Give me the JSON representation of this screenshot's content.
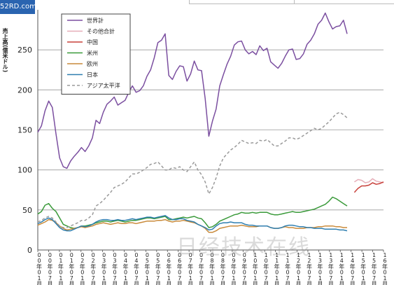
{
  "page": {
    "corner_text": "52RD.com",
    "watermark_text": "日经技术在线"
  },
  "chart_data": {
    "type": "line",
    "ylabel": "売上高(億米ドル)",
    "ylim": [
      0,
      300
    ],
    "yticks": [
      0,
      50,
      100,
      150,
      200,
      250
    ],
    "grid": true,
    "legend_position": "top-left",
    "x_count": 96,
    "x_tick_labels": [
      "00年01月",
      "00年07月",
      "01年01月",
      "01年07月",
      "02年01月",
      "02年07月",
      "03年01月",
      "03年07月",
      "04年01月",
      "04年07月",
      "05年01月",
      "05年07月",
      "06年01月",
      "06年07月",
      "07年01月",
      "07年07月",
      "08年01月",
      "08年07月",
      "09年01月",
      "09年07月",
      "10年01月",
      "10年07月",
      "11年01月",
      "11年07月",
      "12年01月",
      "12年07月",
      "13年01月",
      "13年07月",
      "14年01月",
      "14年07月",
      "15年01月",
      "15年07月",
      "16年01月"
    ],
    "series": [
      {
        "name": "世界計",
        "color": "#7b4fa0",
        "dash": false,
        "start": 0,
        "values": [
          147,
          155,
          174,
          186,
          178,
          145,
          115,
          104,
          102,
          111,
          117,
          122,
          128,
          123,
          130,
          140,
          162,
          158,
          172,
          182,
          186,
          191,
          181,
          184,
          187,
          197,
          205,
          197,
          199,
          205,
          217,
          225,
          240,
          259,
          262,
          270,
          218,
          213,
          223,
          230,
          229,
          211,
          220,
          236,
          225,
          224,
          189,
          142,
          161,
          176,
          205,
          219,
          232,
          242,
          256,
          260,
          261,
          250,
          245,
          248,
          244,
          255,
          249,
          252,
          235,
          231,
          227,
          233,
          242,
          250,
          251,
          238,
          239,
          245,
          257,
          262,
          270,
          282,
          287,
          296,
          285,
          276,
          279,
          280,
          287,
          270
        ]
      },
      {
        "name": "その他合計",
        "color": "#e6aeb8",
        "dash": false,
        "start": 87,
        "values": [
          85,
          88,
          87,
          84,
          85,
          89,
          86,
          85,
          84
        ]
      },
      {
        "name": "中国",
        "color": "#c8403a",
        "dash": false,
        "start": 87,
        "values": [
          72,
          77,
          80,
          80,
          81,
          84,
          82,
          83,
          85
        ]
      },
      {
        "name": "米州",
        "color": "#3a9a3a",
        "dash": false,
        "start": 0,
        "values": [
          45,
          48,
          56,
          58,
          52,
          48,
          40,
          32,
          30,
          28,
          27,
          28,
          30,
          30,
          31,
          32,
          34,
          35,
          36,
          36,
          35,
          36,
          37,
          36,
          35,
          36,
          37,
          37,
          38,
          39,
          40,
          40,
          39,
          40,
          41,
          42,
          38,
          38,
          39,
          40,
          41,
          40,
          41,
          42,
          40,
          39,
          34,
          28,
          29,
          32,
          36,
          38,
          40,
          42,
          44,
          45,
          47,
          46,
          46,
          47,
          46,
          47,
          47,
          47,
          45,
          44,
          44,
          45,
          46,
          47,
          48,
          47,
          47,
          48,
          49,
          50,
          51,
          53,
          55,
          57,
          61,
          66,
          64,
          61,
          58,
          55
        ]
      },
      {
        "name": "欧州",
        "color": "#c98a3a",
        "dash": false,
        "start": 0,
        "values": [
          31,
          33,
          35,
          38,
          37,
          34,
          30,
          27,
          25,
          26,
          27,
          28,
          29,
          28,
          29,
          30,
          32,
          33,
          34,
          33,
          32,
          33,
          34,
          33,
          33,
          34,
          34,
          33,
          34,
          35,
          36,
          36,
          36,
          37,
          37,
          38,
          36,
          35,
          36,
          36,
          37,
          36,
          35,
          34,
          32,
          30,
          27,
          22,
          22,
          24,
          27,
          28,
          29,
          30,
          30,
          30,
          31,
          30,
          29,
          29,
          29,
          30,
          30,
          30,
          28,
          27,
          27,
          28,
          29,
          28,
          28,
          27,
          27,
          27,
          28,
          28,
          28,
          29,
          29,
          30,
          30,
          30,
          29,
          29,
          28,
          28
        ]
      },
      {
        "name": "日本",
        "color": "#2f7fb0",
        "dash": false,
        "start": 0,
        "values": [
          33,
          35,
          38,
          40,
          38,
          33,
          28,
          25,
          24,
          24,
          26,
          28,
          30,
          29,
          30,
          32,
          35,
          37,
          38,
          38,
          37,
          37,
          38,
          37,
          37,
          38,
          39,
          38,
          39,
          40,
          41,
          41,
          40,
          41,
          42,
          43,
          40,
          38,
          38,
          39,
          39,
          37,
          36,
          35,
          32,
          30,
          28,
          25,
          26,
          30,
          33,
          34,
          34,
          35,
          34,
          34,
          34,
          32,
          31,
          31,
          30,
          30,
          30,
          30,
          28,
          27,
          27,
          28,
          30,
          31,
          31,
          30,
          29,
          29,
          28,
          28,
          27,
          27,
          27,
          26,
          26,
          26,
          26,
          25,
          25,
          24
        ]
      },
      {
        "name": "アジア太平洋",
        "color": "#9a9a9a",
        "dash": true,
        "start": 0,
        "values": [
          35,
          37,
          40,
          42,
          40,
          35,
          30,
          28,
          28,
          30,
          32,
          34,
          37,
          37,
          40,
          44,
          55,
          58,
          62,
          67,
          72,
          78,
          80,
          82,
          85,
          90,
          95,
          95,
          97,
          100,
          103,
          107,
          108,
          110,
          105,
          100,
          100,
          103,
          102,
          104,
          100,
          98,
          104,
          110,
          100,
          94,
          85,
          70,
          78,
          90,
          105,
          115,
          120,
          125,
          128,
          132,
          137,
          135,
          133,
          134,
          133,
          137,
          136,
          138,
          134,
          130,
          130,
          133,
          136,
          140,
          140,
          138,
          140,
          143,
          146,
          149,
          152,
          150,
          152,
          156,
          160,
          165,
          170,
          172,
          169,
          165
        ]
      }
    ]
  }
}
